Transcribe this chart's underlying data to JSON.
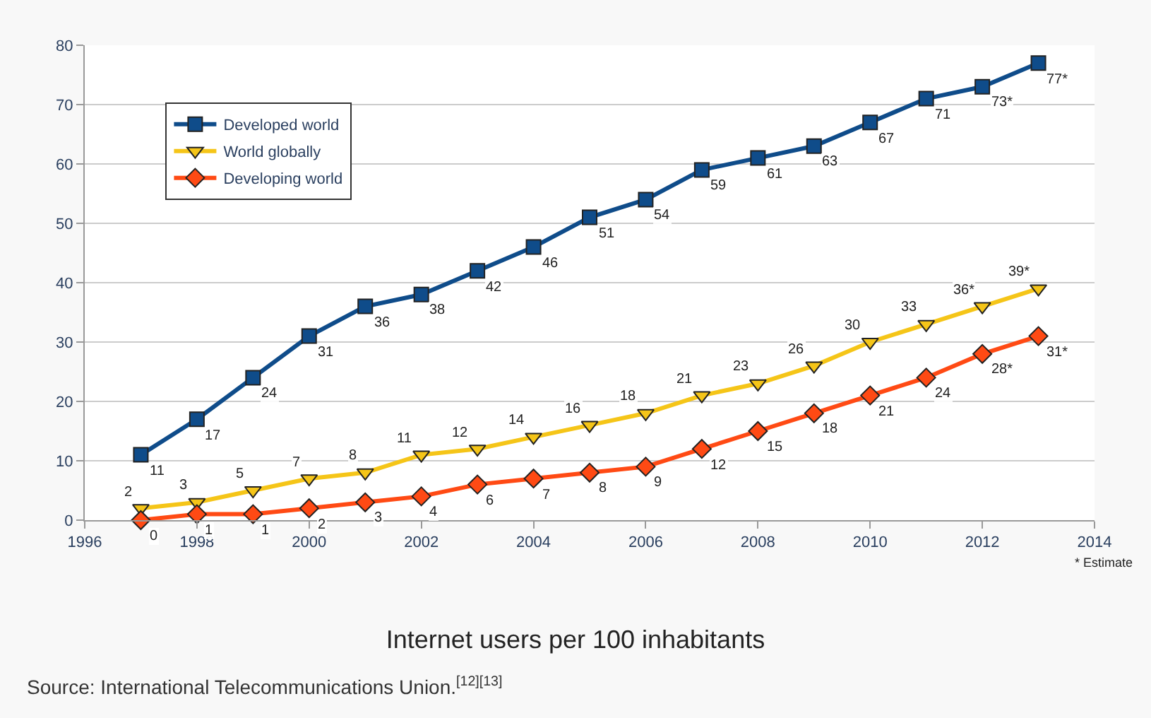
{
  "chart_data": {
    "type": "line",
    "title": "Internet users per 100 inhabitants",
    "annotations": [
      "* Estimate",
      "Source: International Telecommunications Union.$^{[12][13]}$"
    ],
    "x": [
      1997,
      1998,
      1999,
      2000,
      2001,
      2002,
      2003,
      2004,
      2005,
      2006,
      2007,
      2008,
      2009,
      2010,
      2011,
      2012,
      2013
    ],
    "series": [
      {
        "name": "Developed world",
        "color": "#0f4c8a",
        "marker": "square",
        "values": [
          11,
          17,
          24,
          31,
          36,
          38,
          42,
          46,
          51,
          54,
          59,
          61,
          63,
          67,
          71,
          73,
          77
        ],
        "value_labels": [
          "11",
          "17",
          "24",
          "31",
          "36",
          "38",
          "42",
          "46",
          "51",
          "54",
          "59",
          "61",
          "63",
          "67",
          "71",
          "73*",
          "77*"
        ]
      },
      {
        "name": "World globally",
        "color": "#f5c518",
        "marker": "triangle",
        "values": [
          2,
          3,
          5,
          7,
          8,
          11,
          12,
          14,
          16,
          18,
          21,
          23,
          26,
          30,
          33,
          36,
          39
        ],
        "value_labels": [
          "2",
          "3",
          "5",
          "7",
          "8",
          "11",
          "12",
          "14",
          "16",
          "18",
          "21",
          "23",
          "26",
          "30",
          "33",
          "36*",
          "39*"
        ]
      },
      {
        "name": "Developing world",
        "color": "#ff4a14",
        "marker": "diamond",
        "values": [
          0,
          1,
          1,
          2,
          3,
          4,
          6,
          7,
          8,
          9,
          12,
          15,
          18,
          21,
          24,
          28,
          31
        ],
        "value_labels": [
          "0",
          "1",
          "1",
          "2",
          "3",
          "4",
          "6",
          "7",
          "8",
          "9",
          "12",
          "15",
          "18",
          "21",
          "24",
          "28*",
          "31*"
        ]
      }
    ],
    "xlim": [
      1996,
      2014
    ],
    "xticks": [
      1996,
      1998,
      2000,
      2002,
      2004,
      2006,
      2008,
      2010,
      2012,
      2014
    ],
    "ylim": [
      0,
      80
    ],
    "yticks": [
      0,
      10,
      20,
      30,
      40,
      50,
      60,
      70,
      80
    ],
    "grid": "y",
    "legend": "top left",
    "line_style": "solid"
  }
}
